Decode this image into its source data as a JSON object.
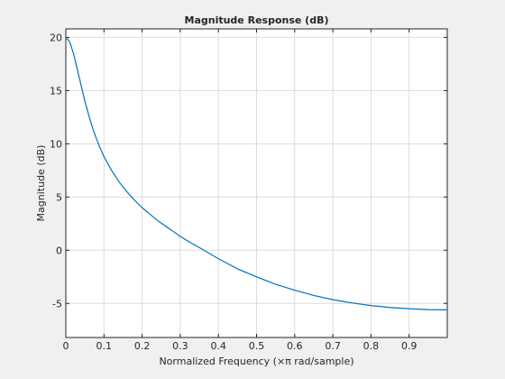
{
  "chart_data": {
    "type": "line",
    "title": "Magnitude Response (dB)",
    "xlabel": "Normalized Frequency (×π rad/sample)",
    "ylabel": "Magnitude (dB)",
    "xlim": [
      0,
      1
    ],
    "ylim": [
      -8.2,
      20.8
    ],
    "x_ticks": [
      0,
      0.1,
      0.2,
      0.3,
      0.4,
      0.5,
      0.6,
      0.7,
      0.8,
      0.9
    ],
    "x_tick_labels": [
      "0",
      "0.1",
      "0.2",
      "0.3",
      "0.4",
      "0.5",
      "0.6",
      "0.7",
      "0.8",
      "0.9"
    ],
    "y_ticks": [
      -5,
      0,
      5,
      10,
      15,
      20
    ],
    "y_tick_labels": [
      "-5",
      "0",
      "5",
      "10",
      "15",
      "20"
    ],
    "grid": true,
    "legend": "none",
    "line_color": "#0072bd",
    "series": [
      {
        "x": [
          0,
          0.01,
          0.02,
          0.03,
          0.04,
          0.05,
          0.06,
          0.07,
          0.08,
          0.09,
          0.1,
          0.12,
          0.14,
          0.16,
          0.18,
          0.2,
          0.22,
          0.24,
          0.26,
          0.28,
          0.3,
          0.33,
          0.36,
          0.4,
          0.45,
          0.5,
          0.55,
          0.6,
          0.65,
          0.7,
          0.75,
          0.8,
          0.85,
          0.9,
          0.95,
          1.0
        ],
        "values": [
          20.0,
          19.6,
          18.5,
          17.0,
          15.5,
          14.0,
          12.7,
          11.5,
          10.5,
          9.6,
          8.8,
          7.5,
          6.4,
          5.5,
          4.7,
          4.0,
          3.4,
          2.8,
          2.3,
          1.8,
          1.3,
          0.65,
          0.05,
          -0.8,
          -1.75,
          -2.5,
          -3.2,
          -3.75,
          -4.25,
          -4.65,
          -4.95,
          -5.2,
          -5.38,
          -5.5,
          -5.58,
          -5.6
        ]
      }
    ]
  }
}
